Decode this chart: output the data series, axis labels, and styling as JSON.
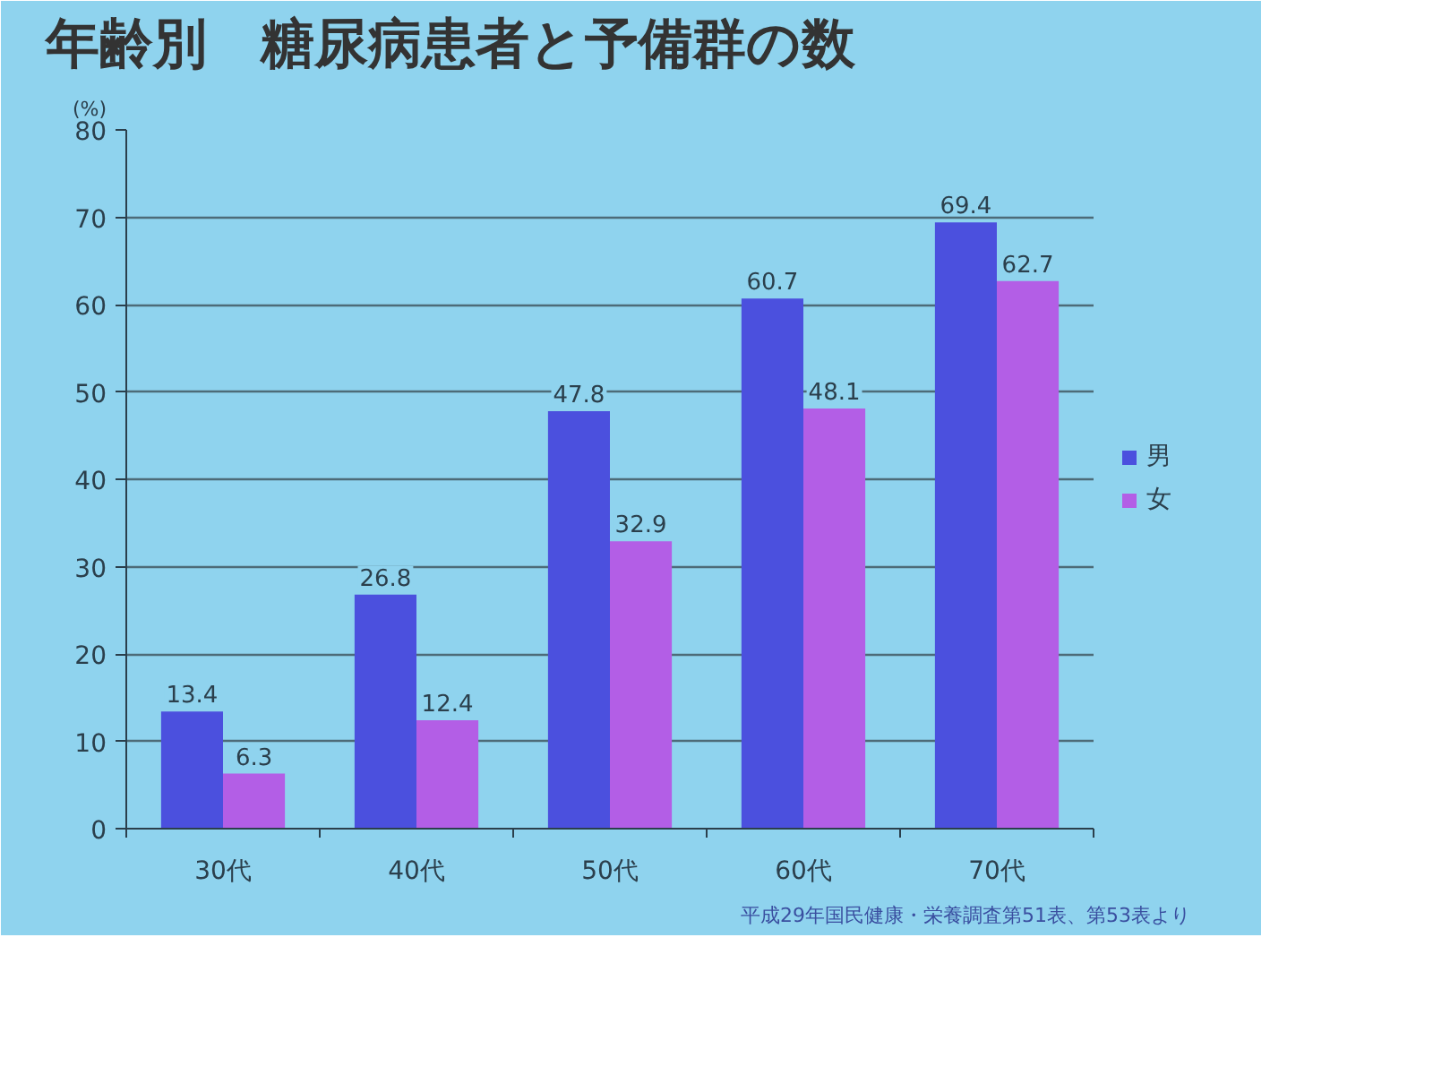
{
  "chart_data": {
    "type": "bar",
    "title": "年齢別　糖尿病患者と予備群の数",
    "ylabel": "(%)",
    "annotations": [
      "平成29年国民健康・栄養調査第51表、第53表より"
    ],
    "categories": [
      "30代",
      "40代",
      "50代",
      "60代",
      "70代"
    ],
    "series": [
      {
        "name": "男",
        "color": "#4b50de",
        "values": [
          13.4,
          26.8,
          47.8,
          60.7,
          69.4
        ]
      },
      {
        "name": "女",
        "color": "#b35ee6",
        "values": [
          6.3,
          12.4,
          32.9,
          48.1,
          62.7
        ]
      }
    ],
    "ylim": [
      0,
      80
    ],
    "yticks": [
      0,
      10,
      20,
      30,
      40,
      50,
      60,
      70,
      80
    ],
    "grid": "y",
    "legend": "right",
    "data_labels": true
  }
}
